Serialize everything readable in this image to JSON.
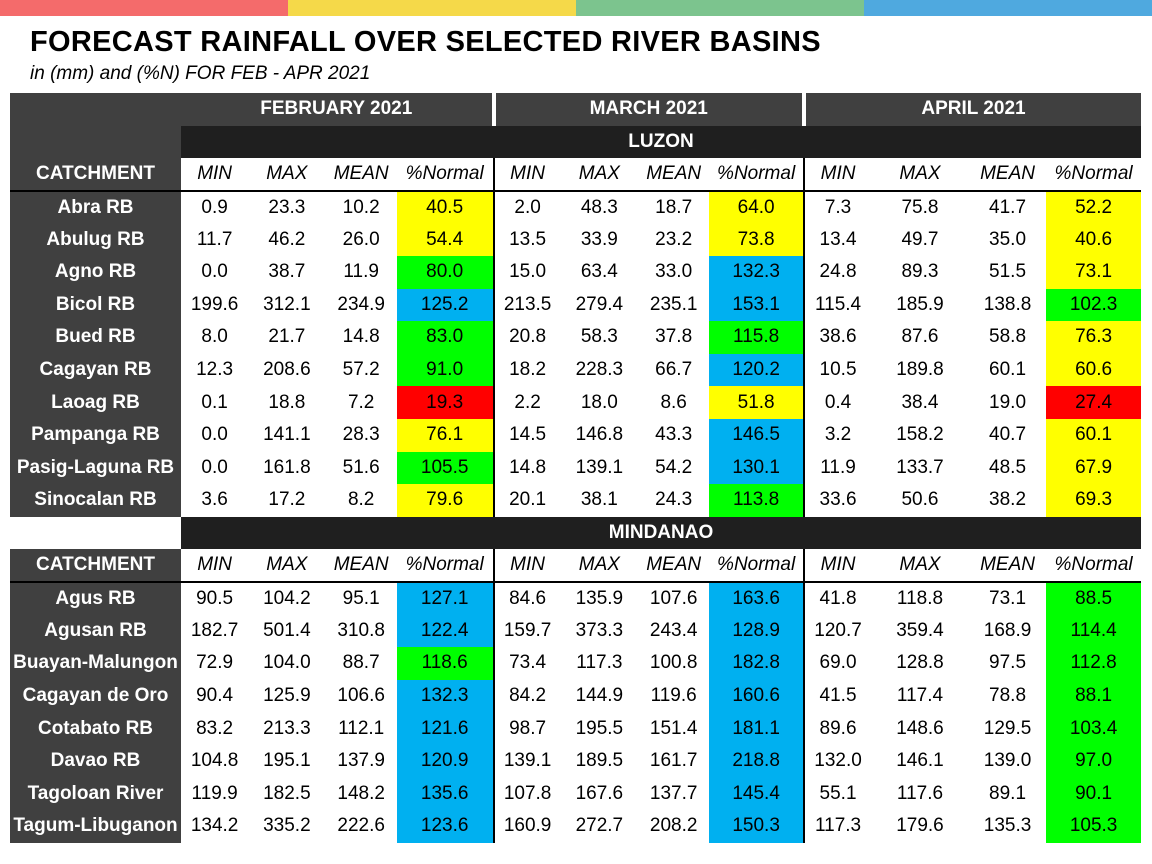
{
  "header": {
    "title": "FORECAST RAINFALL OVER SELECTED RIVER BASINS",
    "subtitle": "in (mm) and (%N) FOR  FEB - APR 2021"
  },
  "colors": {
    "top_bar": [
      "#f46b6b",
      "#f5d949",
      "#7cc48e",
      "#4fa9df"
    ],
    "category_colors": {
      "yellow": "#ffff00",
      "green": "#00ff00",
      "blue": "#00b0f0",
      "red": "#ff0000"
    }
  },
  "months": [
    "FEBRUARY 2021",
    "MARCH 2021",
    "APRIL 2021"
  ],
  "column_headers": {
    "catchment": "CATCHMENT",
    "stats": [
      "MIN",
      "MAX",
      "MEAN",
      "%Normal"
    ]
  },
  "regions": [
    {
      "name": "LUZON",
      "rows": [
        {
          "name": "Abra RB",
          "months": [
            {
              "min": "0.9",
              "max": "23.3",
              "mean": "10.2",
              "pn": "40.5",
              "cat": "yellow"
            },
            {
              "min": "2.0",
              "max": "48.3",
              "mean": "18.7",
              "pn": "64.0",
              "cat": "yellow"
            },
            {
              "min": "7.3",
              "max": "75.8",
              "mean": "41.7",
              "pn": "52.2",
              "cat": "yellow"
            }
          ]
        },
        {
          "name": "Abulug RB",
          "months": [
            {
              "min": "11.7",
              "max": "46.2",
              "mean": "26.0",
              "pn": "54.4",
              "cat": "yellow"
            },
            {
              "min": "13.5",
              "max": "33.9",
              "mean": "23.2",
              "pn": "73.8",
              "cat": "yellow"
            },
            {
              "min": "13.4",
              "max": "49.7",
              "mean": "35.0",
              "pn": "40.6",
              "cat": "yellow"
            }
          ]
        },
        {
          "name": "Agno RB",
          "months": [
            {
              "min": "0.0",
              "max": "38.7",
              "mean": "11.9",
              "pn": "80.0",
              "cat": "green"
            },
            {
              "min": "15.0",
              "max": "63.4",
              "mean": "33.0",
              "pn": "132.3",
              "cat": "blue"
            },
            {
              "min": "24.8",
              "max": "89.3",
              "mean": "51.5",
              "pn": "73.1",
              "cat": "yellow"
            }
          ]
        },
        {
          "name": "Bicol RB",
          "months": [
            {
              "min": "199.6",
              "max": "312.1",
              "mean": "234.9",
              "pn": "125.2",
              "cat": "blue"
            },
            {
              "min": "213.5",
              "max": "279.4",
              "mean": "235.1",
              "pn": "153.1",
              "cat": "blue"
            },
            {
              "min": "115.4",
              "max": "185.9",
              "mean": "138.8",
              "pn": "102.3",
              "cat": "green"
            }
          ]
        },
        {
          "name": "Bued RB",
          "months": [
            {
              "min": "8.0",
              "max": "21.7",
              "mean": "14.8",
              "pn": "83.0",
              "cat": "green"
            },
            {
              "min": "20.8",
              "max": "58.3",
              "mean": "37.8",
              "pn": "115.8",
              "cat": "green"
            },
            {
              "min": "38.6",
              "max": "87.6",
              "mean": "58.8",
              "pn": "76.3",
              "cat": "yellow"
            }
          ]
        },
        {
          "name": "Cagayan RB",
          "months": [
            {
              "min": "12.3",
              "max": "208.6",
              "mean": "57.2",
              "pn": "91.0",
              "cat": "green"
            },
            {
              "min": "18.2",
              "max": "228.3",
              "mean": "66.7",
              "pn": "120.2",
              "cat": "blue"
            },
            {
              "min": "10.5",
              "max": "189.8",
              "mean": "60.1",
              "pn": "60.6",
              "cat": "yellow"
            }
          ]
        },
        {
          "name": "Laoag RB",
          "months": [
            {
              "min": "0.1",
              "max": "18.8",
              "mean": "7.2",
              "pn": "19.3",
              "cat": "red"
            },
            {
              "min": "2.2",
              "max": "18.0",
              "mean": "8.6",
              "pn": "51.8",
              "cat": "yellow"
            },
            {
              "min": "0.4",
              "max": "38.4",
              "mean": "19.0",
              "pn": "27.4",
              "cat": "red"
            }
          ]
        },
        {
          "name": "Pampanga RB",
          "months": [
            {
              "min": "0.0",
              "max": "141.1",
              "mean": "28.3",
              "pn": "76.1",
              "cat": "yellow"
            },
            {
              "min": "14.5",
              "max": "146.8",
              "mean": "43.3",
              "pn": "146.5",
              "cat": "blue"
            },
            {
              "min": "3.2",
              "max": "158.2",
              "mean": "40.7",
              "pn": "60.1",
              "cat": "yellow"
            }
          ]
        },
        {
          "name": "Pasig-Laguna RB",
          "months": [
            {
              "min": "0.0",
              "max": "161.8",
              "mean": "51.6",
              "pn": "105.5",
              "cat": "green"
            },
            {
              "min": "14.8",
              "max": "139.1",
              "mean": "54.2",
              "pn": "130.1",
              "cat": "blue"
            },
            {
              "min": "11.9",
              "max": "133.7",
              "mean": "48.5",
              "pn": "67.9",
              "cat": "yellow"
            }
          ]
        },
        {
          "name": "Sinocalan RB",
          "months": [
            {
              "min": "3.6",
              "max": "17.2",
              "mean": "8.2",
              "pn": "79.6",
              "cat": "yellow"
            },
            {
              "min": "20.1",
              "max": "38.1",
              "mean": "24.3",
              "pn": "113.8",
              "cat": "green"
            },
            {
              "min": "33.6",
              "max": "50.6",
              "mean": "38.2",
              "pn": "69.3",
              "cat": "yellow"
            }
          ]
        }
      ]
    },
    {
      "name": "MINDANAO",
      "rows": [
        {
          "name": "Agus RB",
          "months": [
            {
              "min": "90.5",
              "max": "104.2",
              "mean": "95.1",
              "pn": "127.1",
              "cat": "blue"
            },
            {
              "min": "84.6",
              "max": "135.9",
              "mean": "107.6",
              "pn": "163.6",
              "cat": "blue"
            },
            {
              "min": "41.8",
              "max": "118.8",
              "mean": "73.1",
              "pn": "88.5",
              "cat": "green"
            }
          ]
        },
        {
          "name": "Agusan RB",
          "months": [
            {
              "min": "182.7",
              "max": "501.4",
              "mean": "310.8",
              "pn": "122.4",
              "cat": "blue"
            },
            {
              "min": "159.7",
              "max": "373.3",
              "mean": "243.4",
              "pn": "128.9",
              "cat": "blue"
            },
            {
              "min": "120.7",
              "max": "359.4",
              "mean": "168.9",
              "pn": "114.4",
              "cat": "green"
            }
          ]
        },
        {
          "name": "Buayan-Malungon",
          "months": [
            {
              "min": "72.9",
              "max": "104.0",
              "mean": "88.7",
              "pn": "118.6",
              "cat": "green"
            },
            {
              "min": "73.4",
              "max": "117.3",
              "mean": "100.8",
              "pn": "182.8",
              "cat": "blue"
            },
            {
              "min": "69.0",
              "max": "128.8",
              "mean": "97.5",
              "pn": "112.8",
              "cat": "green"
            }
          ]
        },
        {
          "name": "Cagayan de Oro",
          "months": [
            {
              "min": "90.4",
              "max": "125.9",
              "mean": "106.6",
              "pn": "132.3",
              "cat": "blue"
            },
            {
              "min": "84.2",
              "max": "144.9",
              "mean": "119.6",
              "pn": "160.6",
              "cat": "blue"
            },
            {
              "min": "41.5",
              "max": "117.4",
              "mean": "78.8",
              "pn": "88.1",
              "cat": "green"
            }
          ]
        },
        {
          "name": "Cotabato RB",
          "months": [
            {
              "min": "83.2",
              "max": "213.3",
              "mean": "112.1",
              "pn": "121.6",
              "cat": "blue"
            },
            {
              "min": "98.7",
              "max": "195.5",
              "mean": "151.4",
              "pn": "181.1",
              "cat": "blue"
            },
            {
              "min": "89.6",
              "max": "148.6",
              "mean": "129.5",
              "pn": "103.4",
              "cat": "green"
            }
          ]
        },
        {
          "name": "Davao RB",
          "months": [
            {
              "min": "104.8",
              "max": "195.1",
              "mean": "137.9",
              "pn": "120.9",
              "cat": "blue"
            },
            {
              "min": "139.1",
              "max": "189.5",
              "mean": "161.7",
              "pn": "218.8",
              "cat": "blue"
            },
            {
              "min": "132.0",
              "max": "146.1",
              "mean": "139.0",
              "pn": "97.0",
              "cat": "green"
            }
          ]
        },
        {
          "name": "Tagoloan River",
          "months": [
            {
              "min": "119.9",
              "max": "182.5",
              "mean": "148.2",
              "pn": "135.6",
              "cat": "blue"
            },
            {
              "min": "107.8",
              "max": "167.6",
              "mean": "137.7",
              "pn": "145.4",
              "cat": "blue"
            },
            {
              "min": "55.1",
              "max": "117.6",
              "mean": "89.1",
              "pn": "90.1",
              "cat": "green"
            }
          ]
        },
        {
          "name": "Tagum-Libuganon",
          "months": [
            {
              "min": "134.2",
              "max": "335.2",
              "mean": "222.6",
              "pn": "123.6",
              "cat": "blue"
            },
            {
              "min": "160.9",
              "max": "272.7",
              "mean": "208.2",
              "pn": "150.3",
              "cat": "blue"
            },
            {
              "min": "117.3",
              "max": "179.6",
              "mean": "135.3",
              "pn": "105.3",
              "cat": "green"
            }
          ]
        }
      ]
    }
  ]
}
